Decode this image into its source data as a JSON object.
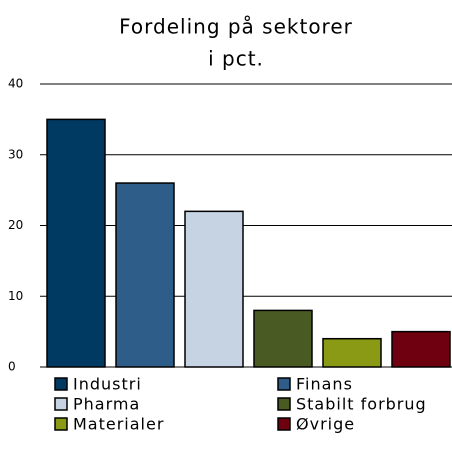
{
  "chart_data": {
    "type": "bar",
    "title": [
      "Fordeling på sektorer",
      "i pct."
    ],
    "categories": [
      "Industri",
      "Finans",
      "Pharma",
      "Stabilt forbrug",
      "Materialer",
      "Øvrige"
    ],
    "values": [
      35,
      26,
      22,
      8,
      4,
      5
    ],
    "colors": [
      "#003a63",
      "#2e5d8a",
      "#c5d3e3",
      "#4a5a23",
      "#8a9a14",
      "#6e0010"
    ],
    "ylim": [
      0,
      40
    ],
    "yticks": [
      0,
      10,
      20,
      30,
      40
    ],
    "grid": true
  }
}
